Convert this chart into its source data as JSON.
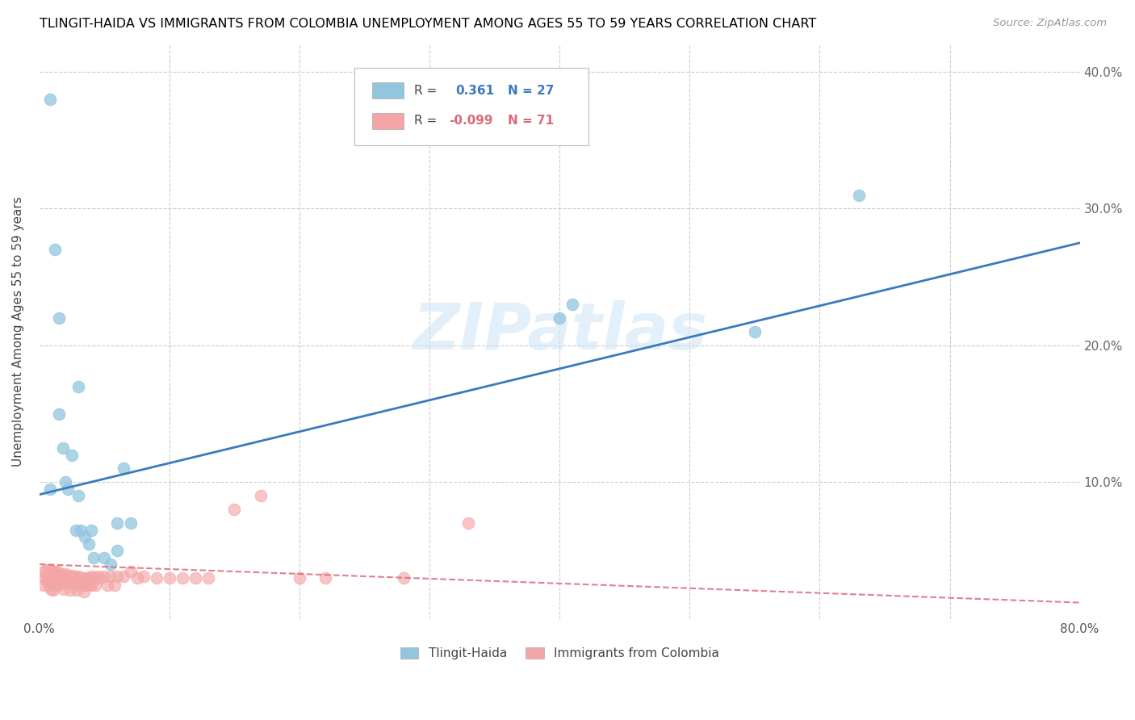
{
  "title": "TLINGIT-HAIDA VS IMMIGRANTS FROM COLOMBIA UNEMPLOYMENT AMONG AGES 55 TO 59 YEARS CORRELATION CHART",
  "source": "Source: ZipAtlas.com",
  "ylabel": "Unemployment Among Ages 55 to 59 years",
  "xlim": [
    0.0,
    0.8
  ],
  "ylim": [
    0.0,
    0.42
  ],
  "xticks": [
    0.0,
    0.1,
    0.2,
    0.3,
    0.4,
    0.5,
    0.6,
    0.7,
    0.8
  ],
  "yticks": [
    0.0,
    0.1,
    0.2,
    0.3,
    0.4
  ],
  "yticklabels_right": [
    "",
    "10.0%",
    "20.0%",
    "30.0%",
    "40.0%"
  ],
  "blue_R": "0.361",
  "blue_N": "27",
  "pink_R": "-0.099",
  "pink_N": "71",
  "blue_color": "#92c5de",
  "pink_color": "#f4a6a6",
  "blue_line_color": "#3a7abf",
  "pink_line_color": "#d96b7a",
  "watermark": "ZIPatlas",
  "blue_line_x0": 0.0,
  "blue_line_x1": 0.8,
  "blue_line_y0": 0.091,
  "blue_line_y1": 0.275,
  "pink_line_x0": 0.0,
  "pink_line_x1": 0.8,
  "pink_line_y0": 0.04,
  "pink_line_y1": 0.012,
  "tlingit_x": [
    0.008,
    0.008,
    0.012,
    0.015,
    0.015,
    0.018,
    0.02,
    0.022,
    0.025,
    0.028,
    0.03,
    0.03,
    0.032,
    0.035,
    0.038,
    0.04,
    0.042,
    0.05,
    0.055,
    0.06,
    0.06,
    0.065,
    0.07,
    0.4,
    0.41,
    0.55,
    0.63
  ],
  "tlingit_y": [
    0.38,
    0.095,
    0.27,
    0.22,
    0.15,
    0.125,
    0.1,
    0.095,
    0.12,
    0.065,
    0.17,
    0.09,
    0.065,
    0.06,
    0.055,
    0.065,
    0.045,
    0.045,
    0.04,
    0.05,
    0.07,
    0.11,
    0.07,
    0.22,
    0.23,
    0.21,
    0.31
  ],
  "colombia_x": [
    0.003,
    0.003,
    0.003,
    0.005,
    0.006,
    0.006,
    0.007,
    0.008,
    0.008,
    0.009,
    0.009,
    0.01,
    0.01,
    0.011,
    0.011,
    0.012,
    0.013,
    0.013,
    0.014,
    0.015,
    0.015,
    0.016,
    0.016,
    0.017,
    0.018,
    0.019,
    0.02,
    0.021,
    0.022,
    0.023,
    0.024,
    0.025,
    0.026,
    0.027,
    0.028,
    0.029,
    0.03,
    0.03,
    0.032,
    0.033,
    0.034,
    0.035,
    0.036,
    0.037,
    0.038,
    0.04,
    0.04,
    0.042,
    0.043,
    0.045,
    0.047,
    0.05,
    0.052,
    0.055,
    0.058,
    0.06,
    0.065,
    0.07,
    0.075,
    0.08,
    0.09,
    0.1,
    0.11,
    0.12,
    0.13,
    0.15,
    0.17,
    0.2,
    0.22,
    0.28,
    0.33
  ],
  "colombia_y": [
    0.035,
    0.03,
    0.025,
    0.036,
    0.032,
    0.028,
    0.025,
    0.036,
    0.031,
    0.027,
    0.022,
    0.035,
    0.03,
    0.026,
    0.021,
    0.035,
    0.03,
    0.025,
    0.035,
    0.032,
    0.027,
    0.032,
    0.026,
    0.033,
    0.028,
    0.022,
    0.033,
    0.027,
    0.032,
    0.027,
    0.021,
    0.032,
    0.026,
    0.031,
    0.026,
    0.021,
    0.031,
    0.025,
    0.03,
    0.025,
    0.02,
    0.03,
    0.025,
    0.03,
    0.025,
    0.031,
    0.025,
    0.03,
    0.025,
    0.031,
    0.03,
    0.031,
    0.025,
    0.031,
    0.025,
    0.031,
    0.031,
    0.035,
    0.03,
    0.031,
    0.03,
    0.03,
    0.03,
    0.03,
    0.03,
    0.08,
    0.09,
    0.03,
    0.03,
    0.03,
    0.07
  ]
}
